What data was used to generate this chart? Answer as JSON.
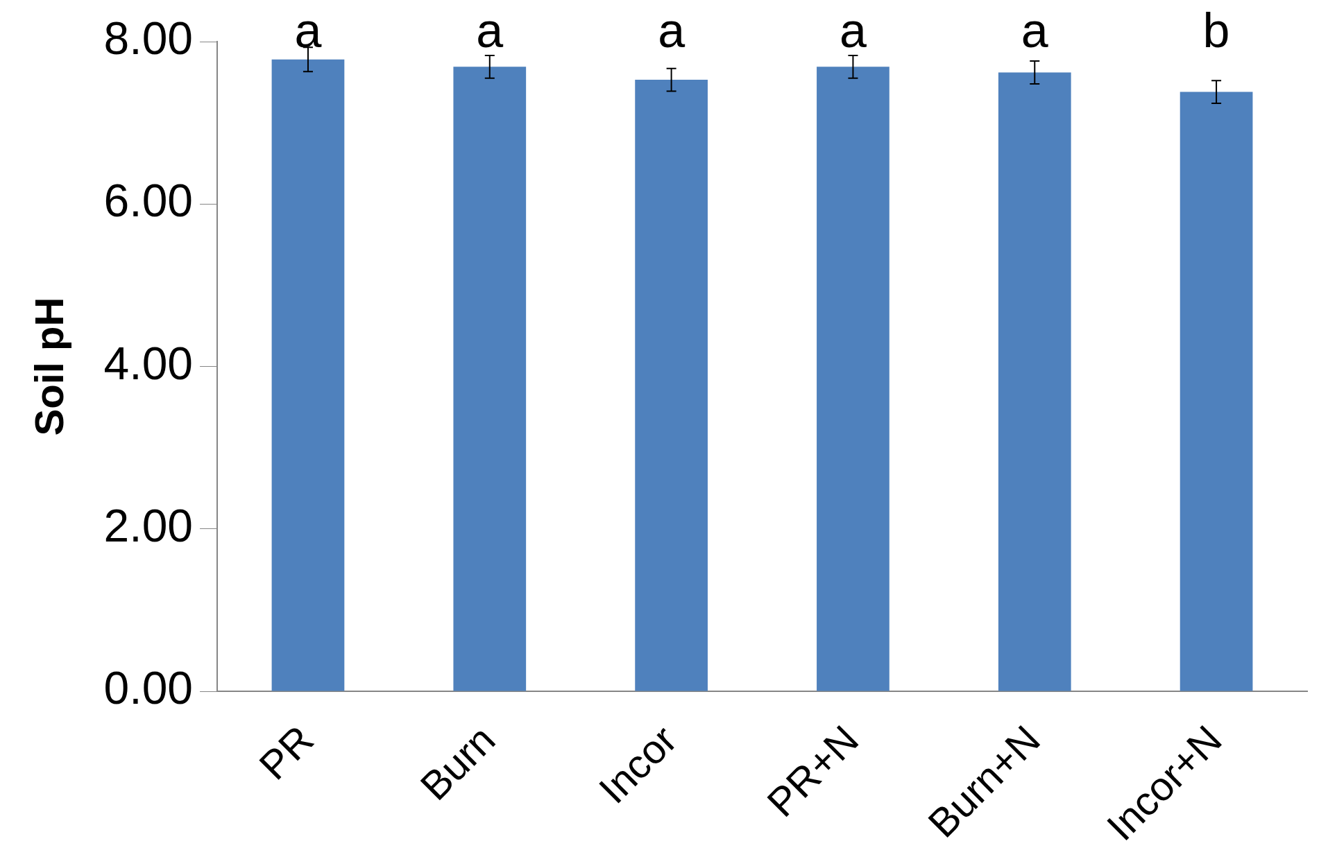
{
  "chart_data": {
    "type": "bar",
    "ylabel": "Soil pH",
    "categories": [
      "PR",
      "Burn",
      "Incor",
      "PR+N",
      "Burn+N",
      "Incor+N"
    ],
    "values": [
      7.78,
      7.69,
      7.53,
      7.69,
      7.62,
      7.38
    ],
    "errors": [
      0.15,
      0.14,
      0.14,
      0.14,
      0.14,
      0.14
    ],
    "color": "#4f81bd",
    "ylim": [
      0,
      8
    ],
    "yticks": [
      {
        "value": 0,
        "label": "0.00"
      },
      {
        "value": 2,
        "label": "2.00"
      },
      {
        "value": 4,
        "label": "4.00"
      },
      {
        "value": 6,
        "label": "6.00"
      },
      {
        "value": 8,
        "label": "8.00"
      }
    ],
    "grid": false,
    "legend": false,
    "annotations": [
      "a",
      "a",
      "a",
      "a",
      "a",
      "b"
    ]
  }
}
